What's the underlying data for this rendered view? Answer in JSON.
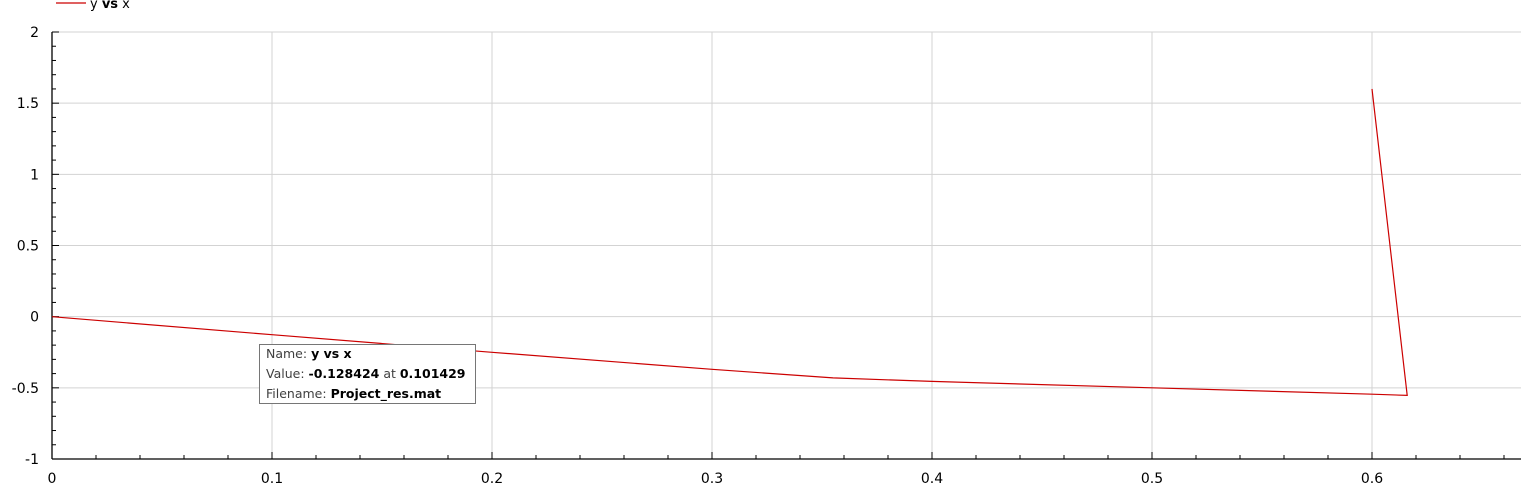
{
  "chart_data": {
    "type": "line",
    "xlim": [
      0,
      0.667
    ],
    "ylim": [
      -1,
      2
    ],
    "xticks": [
      0,
      0.1,
      0.2,
      0.3,
      0.4,
      0.5,
      0.6
    ],
    "xtick_labels": [
      "0",
      "0.1",
      "0.2",
      "0.3",
      "0.4",
      "0.5",
      "0.6"
    ],
    "yticks": [
      -1,
      -0.5,
      0,
      0.5,
      1,
      1.5,
      2
    ],
    "ytick_labels": [
      "-1",
      "-0.5",
      "0",
      "0.5",
      "1",
      "1.5",
      "2"
    ],
    "grid": true,
    "legend_position": "top-left",
    "series": [
      {
        "name": "y vs x",
        "color": "#cc0000",
        "points": [
          [
            0,
            0
          ],
          [
            0.1,
            -0.127
          ],
          [
            0.2,
            -0.25
          ],
          [
            0.3,
            -0.37
          ],
          [
            0.355,
            -0.43
          ],
          [
            0.4,
            -0.455
          ],
          [
            0.5,
            -0.5
          ],
          [
            0.6,
            -0.545
          ],
          [
            0.616,
            -0.553
          ],
          [
            0.6,
            1.6
          ]
        ]
      }
    ]
  },
  "legend": {
    "name_part1": "y ",
    "name_bold": "vs",
    "name_part2": " x"
  },
  "tooltip": {
    "name_label": "Name: ",
    "name_value": "y vs x",
    "value_label": "Value: ",
    "value_y": "-0.128424",
    "value_at": " at ",
    "value_x": "0.101429",
    "file_label": "Filename: ",
    "file_value": "Project_res.mat"
  }
}
